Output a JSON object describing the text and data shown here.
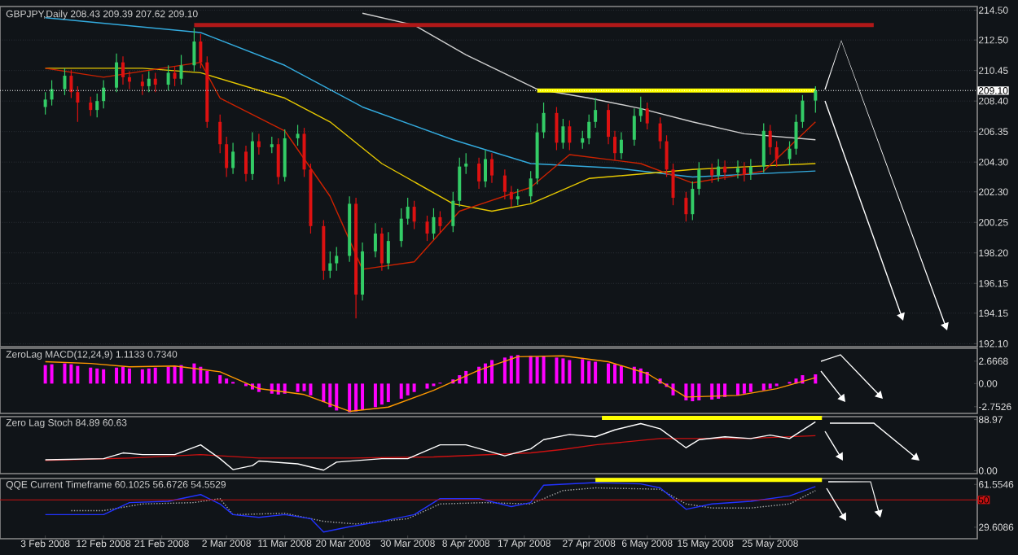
{
  "chart_data": [
    {
      "type": "candlestick",
      "title": "GBPJPY,Daily 208.43 209.39 207.62 209.10",
      "xlim": [
        "2008-01-27",
        "2008-06-26"
      ],
      "ylim": [
        191.9,
        214.75
      ],
      "tick_labels": "y",
      "grid": "y",
      "yticks": [
        {
          "value": 214.5,
          "label": "214.50"
        },
        {
          "value": 212.5,
          "label": "212.50"
        },
        210.45,
        {
          "value": 208.4,
          "label": "208.40"
        },
        206.35,
        {
          "value": 204.3,
          "label": "204.30"
        },
        {
          "value": 202.3,
          "label": "202.30"
        },
        200.25,
        {
          "value": 198.2,
          "label": "198.20"
        },
        196.15,
        194.15,
        {
          "value": 192.1,
          "label": "192.10"
        }
      ],
      "ref_lines": [
        {
          "axis": "y",
          "value": 209.1,
          "label": "209.10",
          "color": "#ffffff",
          "line_style": "dotted"
        }
      ],
      "x": [
        "2008-02-03",
        "2008-02-04",
        "2008-02-06",
        "2008-02-07",
        "2008-02-08",
        "2008-02-10",
        "2008-02-11",
        "2008-02-12",
        "2008-02-14",
        "2008-02-15",
        "2008-02-16",
        "2008-02-18",
        "2008-02-19",
        "2008-02-20",
        "2008-02-22",
        "2008-02-23",
        "2008-02-24",
        "2008-02-26",
        "2008-02-27",
        "2008-02-28",
        "2008-03-01",
        "2008-03-02",
        "2008-03-03",
        "2008-03-05",
        "2008-03-06",
        "2008-03-07",
        "2008-03-09",
        "2008-03-10",
        "2008-03-11",
        "2008-03-13",
        "2008-03-14",
        "2008-03-15",
        "2008-03-17",
        "2008-03-18",
        "2008-03-19",
        "2008-03-21",
        "2008-03-22",
        "2008-03-23",
        "2008-03-25",
        "2008-03-26",
        "2008-03-27",
        "2008-03-29",
        "2008-03-30",
        "2008-03-31",
        "2008-04-02",
        "2008-04-03",
        "2008-04-04",
        "2008-04-06",
        "2008-04-07",
        "2008-04-08",
        "2008-04-10",
        "2008-04-11",
        "2008-04-12",
        "2008-04-14",
        "2008-04-15",
        "2008-04-16",
        "2008-04-18",
        "2008-04-19",
        "2008-04-20",
        "2008-04-22",
        "2008-04-23",
        "2008-04-24",
        "2008-04-26",
        "2008-04-27",
        "2008-04-28",
        "2008-04-30",
        "2008-05-01",
        "2008-05-02",
        "2008-05-04",
        "2008-05-05",
        "2008-05-06",
        "2008-05-08",
        "2008-05-09",
        "2008-05-10",
        "2008-05-12",
        "2008-05-13",
        "2008-05-14",
        "2008-05-16",
        "2008-05-17",
        "2008-05-18",
        "2008-05-20",
        "2008-05-21",
        "2008-05-22",
        "2008-05-24",
        "2008-05-25",
        "2008-05-26",
        "2008-05-28",
        "2008-05-29",
        "2008-05-30",
        "2008-06-01"
      ],
      "ohlc": [
        [
          208.0,
          209.0,
          207.5,
          208.5
        ],
        [
          208.5,
          209.8,
          208.1,
          209.2
        ],
        [
          209.2,
          210.6,
          208.8,
          210.1
        ],
        [
          210.1,
          210.5,
          208.6,
          209.0
        ],
        [
          209.0,
          209.4,
          207.0,
          208.3
        ],
        [
          208.3,
          208.7,
          207.4,
          207.8
        ],
        [
          207.8,
          208.9,
          207.3,
          208.4
        ],
        [
          208.4,
          209.8,
          207.9,
          209.3
        ],
        [
          209.3,
          211.6,
          209.0,
          211.0
        ],
        [
          211.0,
          211.4,
          209.5,
          210.0
        ],
        [
          210.0,
          210.4,
          209.2,
          209.7
        ],
        [
          209.7,
          210.2,
          208.8,
          209.4
        ],
        [
          209.4,
          210.4,
          209.0,
          209.9
        ],
        [
          209.9,
          210.3,
          209.0,
          209.5
        ],
        [
          209.5,
          210.8,
          209.1,
          210.3
        ],
        [
          210.3,
          210.7,
          209.4,
          209.9
        ],
        [
          209.9,
          211.5,
          209.5,
          210.8
        ],
        [
          210.8,
          213.3,
          210.4,
          212.4
        ],
        [
          212.4,
          212.9,
          210.6,
          211.0
        ],
        [
          211.0,
          211.4,
          206.6,
          207.0
        ],
        [
          207.0,
          207.5,
          204.9,
          205.5
        ],
        [
          205.5,
          206.0,
          203.3,
          203.9
        ],
        [
          203.9,
          205.6,
          203.5,
          205.0
        ],
        [
          205.0,
          205.4,
          203.0,
          203.5
        ],
        [
          203.5,
          206.3,
          203.1,
          205.7
        ],
        [
          205.7,
          206.2,
          204.8,
          205.3
        ],
        [
          205.3,
          206.0,
          204.9,
          205.5
        ],
        [
          205.5,
          205.9,
          202.8,
          203.3
        ],
        [
          203.3,
          206.5,
          203.0,
          205.9
        ],
        [
          205.9,
          206.8,
          205.4,
          206.2
        ],
        [
          206.2,
          206.6,
          203.3,
          203.8
        ],
        [
          203.8,
          204.2,
          199.5,
          200.0
        ],
        [
          200.0,
          200.4,
          196.4,
          197.0
        ],
        [
          197.0,
          198.3,
          196.5,
          197.5
        ],
        [
          197.5,
          198.6,
          197.0,
          198.0
        ],
        [
          198.0,
          202.0,
          197.6,
          201.5
        ],
        [
          201.5,
          201.9,
          193.8,
          195.4
        ],
        [
          195.4,
          198.9,
          195.0,
          198.3
        ],
        [
          198.3,
          200.2,
          197.9,
          199.5
        ],
        [
          199.5,
          199.9,
          197.0,
          197.5
        ],
        [
          197.5,
          199.6,
          197.1,
          199.0
        ],
        [
          199.0,
          201.2,
          198.6,
          200.5
        ],
        [
          200.5,
          201.9,
          200.1,
          201.3
        ],
        [
          201.3,
          201.7,
          199.8,
          200.3
        ],
        [
          200.3,
          200.7,
          199.0,
          199.5
        ],
        [
          199.5,
          201.2,
          199.1,
          200.6
        ],
        [
          200.6,
          201.0,
          199.5,
          200.0
        ],
        [
          200.0,
          202.3,
          199.6,
          201.7
        ],
        [
          201.7,
          204.6,
          201.3,
          204.0
        ],
        [
          204.0,
          204.9,
          203.5,
          204.2
        ],
        [
          204.2,
          204.6,
          202.5,
          203.0
        ],
        [
          203.0,
          205.1,
          202.6,
          204.5
        ],
        [
          204.5,
          204.9,
          202.9,
          203.4
        ],
        [
          203.4,
          203.8,
          201.8,
          202.3
        ],
        [
          202.3,
          202.7,
          201.3,
          201.8
        ],
        [
          201.8,
          202.5,
          201.4,
          202.0
        ],
        [
          202.0,
          203.7,
          201.6,
          203.2
        ],
        [
          203.2,
          206.9,
          202.8,
          206.3
        ],
        [
          206.3,
          208.3,
          205.9,
          207.6
        ],
        [
          207.6,
          208.0,
          205.1,
          205.6
        ],
        [
          205.6,
          207.2,
          205.2,
          206.7
        ],
        [
          206.7,
          207.1,
          205.1,
          205.6
        ],
        [
          205.6,
          206.4,
          205.2,
          205.9
        ],
        [
          205.9,
          207.5,
          205.5,
          207.0
        ],
        [
          207.0,
          208.6,
          206.6,
          207.8
        ],
        [
          207.8,
          208.2,
          205.5,
          206.0
        ],
        [
          206.0,
          206.4,
          204.4,
          204.9
        ],
        [
          204.9,
          206.3,
          204.5,
          205.8
        ],
        [
          205.8,
          207.9,
          205.4,
          207.4
        ],
        [
          207.4,
          208.7,
          207.0,
          207.9
        ],
        [
          207.9,
          208.3,
          206.5,
          206.9
        ],
        [
          206.9,
          207.3,
          205.2,
          205.7
        ],
        [
          205.7,
          206.1,
          203.3,
          203.8
        ],
        [
          203.8,
          204.2,
          201.4,
          201.9
        ],
        [
          201.9,
          202.3,
          200.3,
          200.8
        ],
        [
          200.8,
          203.0,
          200.4,
          202.5
        ],
        [
          202.5,
          204.3,
          202.1,
          203.8
        ],
        [
          203.8,
          204.2,
          202.9,
          203.4
        ],
        [
          203.4,
          204.5,
          203.0,
          204.0
        ],
        [
          204.0,
          204.4,
          203.1,
          203.6
        ],
        [
          203.6,
          204.4,
          203.2,
          203.9
        ],
        [
          203.9,
          204.3,
          203.0,
          203.5
        ],
        [
          203.5,
          204.5,
          203.1,
          204.0
        ],
        [
          204.0,
          206.9,
          203.6,
          206.4
        ],
        [
          206.4,
          206.8,
          204.8,
          205.3
        ],
        [
          205.3,
          205.7,
          204.0,
          204.5
        ],
        [
          204.5,
          205.7,
          204.1,
          205.2
        ],
        [
          205.2,
          207.5,
          204.8,
          207.0
        ],
        [
          207.0,
          208.8,
          206.6,
          208.43
        ],
        [
          208.43,
          209.39,
          207.62,
          209.1
        ]
      ],
      "colors": [
        "#33cc66",
        "#33cc66",
        "#33cc66",
        "#dd1111",
        "#dd1111",
        "#dd1111",
        "#33cc66",
        "#33cc66",
        "#33cc66",
        "#dd1111",
        "#dd1111",
        "#dd1111",
        "#33cc66",
        "#dd1111",
        "#33cc66",
        "#dd1111",
        "#33cc66",
        "#33cc66",
        "#dd1111",
        "#dd1111",
        "#dd1111",
        "#dd1111",
        "#33cc66",
        "#dd1111",
        "#33cc66",
        "#dd1111",
        "#33cc66",
        "#dd1111",
        "#33cc66",
        "#33cc66",
        "#dd1111",
        "#dd1111",
        "#dd1111",
        "#33cc66",
        "#33cc66",
        "#33cc66",
        "#dd1111",
        "#33cc66",
        "#33cc66",
        "#dd1111",
        "#33cc66",
        "#33cc66",
        "#33cc66",
        "#dd1111",
        "#dd1111",
        "#33cc66",
        "#dd1111",
        "#33cc66",
        "#33cc66",
        "#33cc66",
        "#dd1111",
        "#33cc66",
        "#dd1111",
        "#dd1111",
        "#dd1111",
        "#33cc66",
        "#33cc66",
        "#33cc66",
        "#33cc66",
        "#dd1111",
        "#33cc66",
        "#dd1111",
        "#33cc66",
        "#33cc66",
        "#33cc66",
        "#dd1111",
        "#dd1111",
        "#33cc66",
        "#33cc66",
        "#33cc66",
        "#dd1111",
        "#dd1111",
        "#dd1111",
        "#dd1111",
        "#dd1111",
        "#33cc66",
        "#33cc66",
        "#dd1111",
        "#33cc66",
        "#dd1111",
        "#33cc66",
        "#dd1111",
        "#33cc66",
        "#33cc66",
        "#dd1111",
        "#dd1111",
        "#33cc66",
        "#33cc66",
        "#33cc66",
        "#33cc66"
      ],
      "series": [
        {
          "type": "line",
          "color": "#33aadd",
          "x": [
            "2008-02-03",
            "2008-02-27",
            "2008-03-11",
            "2008-03-23",
            "2008-04-06",
            "2008-04-18",
            "2008-05-01",
            "2008-05-13",
            "2008-06-01"
          ],
          "values": [
            214.0,
            213.0,
            210.8,
            208.0,
            205.8,
            204.2,
            203.9,
            203.3,
            203.7
          ]
        },
        {
          "type": "line",
          "color": "#e6c800",
          "x": [
            "2008-02-03",
            "2008-02-18",
            "2008-02-27",
            "2008-03-11",
            "2008-03-18",
            "2008-03-26",
            "2008-04-06",
            "2008-04-12",
            "2008-04-18",
            "2008-04-27",
            "2008-05-13",
            "2008-05-22",
            "2008-06-01"
          ],
          "values": [
            210.6,
            210.6,
            210.3,
            208.6,
            207.0,
            204.2,
            201.5,
            201.0,
            201.5,
            203.2,
            203.8,
            204.0,
            204.2
          ]
        },
        {
          "type": "line",
          "color": "#cc2200",
          "x": [
            "2008-02-03",
            "2008-02-12",
            "2008-02-27",
            "2008-03-01",
            "2008-03-11",
            "2008-03-18",
            "2008-03-23",
            "2008-03-31",
            "2008-04-07",
            "2008-04-18",
            "2008-04-24",
            "2008-05-05",
            "2008-05-13",
            "2008-05-24",
            "2008-06-01"
          ],
          "values": [
            210.6,
            210.0,
            211.0,
            208.6,
            206.4,
            202.0,
            197.1,
            197.6,
            201.0,
            202.6,
            204.8,
            204.2,
            202.9,
            203.7,
            207.0
          ]
        },
        {
          "type": "line",
          "color": "#d0d0d0",
          "x": [
            "2008-03-23",
            "2008-03-31",
            "2008-04-08",
            "2008-04-19",
            "2008-04-27",
            "2008-05-05",
            "2008-05-13",
            "2008-05-21",
            "2008-06-01"
          ],
          "values": [
            214.3,
            213.5,
            211.5,
            209.2,
            208.6,
            207.9,
            207.0,
            206.2,
            205.8
          ]
        },
        {
          "type": "line",
          "color": "#b01818",
          "x": [
            "2008-02-26",
            "2008-06-10"
          ],
          "values": [
            213.5,
            213.5
          ]
        },
        {
          "type": "line",
          "color": "#ffff00",
          "x": [
            "2008-04-19",
            "2008-06-01"
          ],
          "values": [
            209.1,
            209.1
          ]
        }
      ]
    },
    {
      "type": "bar",
      "title": "ZeroLag MACD(12,24,9) 1.1133 0.7340",
      "xlim": [
        "2008-01-27",
        "2008-06-26"
      ],
      "ylim": [
        -3.55,
        4.2
      ],
      "tick_labels": "y",
      "yticks": [
        2.6668,
        {
          "value": 0,
          "label": "0.00"
        },
        -2.7526
      ],
      "series": [
        {
          "type": "bar",
          "color": "#ff00ff",
          "x": [
            "2008-02-03",
            "2008-02-04",
            "2008-02-06",
            "2008-02-07",
            "2008-02-08",
            "2008-02-10",
            "2008-02-11",
            "2008-02-12",
            "2008-02-14",
            "2008-02-15",
            "2008-02-16",
            "2008-02-18",
            "2008-02-19",
            "2008-02-20",
            "2008-02-22",
            "2008-02-23",
            "2008-02-24",
            "2008-02-26",
            "2008-02-27",
            "2008-02-28",
            "2008-03-01",
            "2008-03-02",
            "2008-03-03",
            "2008-03-05",
            "2008-03-06",
            "2008-03-07",
            "2008-03-09",
            "2008-03-10",
            "2008-03-11",
            "2008-03-13",
            "2008-03-14",
            "2008-03-15",
            "2008-03-17",
            "2008-03-18",
            "2008-03-19",
            "2008-03-21",
            "2008-03-22",
            "2008-03-23",
            "2008-03-25",
            "2008-03-26",
            "2008-03-27",
            "2008-03-29",
            "2008-03-30",
            "2008-03-31",
            "2008-04-02",
            "2008-04-03",
            "2008-04-04",
            "2008-04-06",
            "2008-04-07",
            "2008-04-08",
            "2008-04-10",
            "2008-04-11",
            "2008-04-12",
            "2008-04-14",
            "2008-04-15",
            "2008-04-16",
            "2008-04-18",
            "2008-04-19",
            "2008-04-20",
            "2008-04-22",
            "2008-04-23",
            "2008-04-24",
            "2008-04-26",
            "2008-04-27",
            "2008-04-28",
            "2008-04-30",
            "2008-05-01",
            "2008-05-02",
            "2008-05-04",
            "2008-05-05",
            "2008-05-06",
            "2008-05-08",
            "2008-05-09",
            "2008-05-10",
            "2008-05-12",
            "2008-05-13",
            "2008-05-14",
            "2008-05-16",
            "2008-05-17",
            "2008-05-18",
            "2008-05-20",
            "2008-05-21",
            "2008-05-22",
            "2008-05-24",
            "2008-05-25",
            "2008-05-26",
            "2008-05-28",
            "2008-05-29",
            "2008-05-30",
            "2008-06-01"
          ],
          "values": [
            2.2,
            2.3,
            2.4,
            2.3,
            2.1,
            1.9,
            1.8,
            1.7,
            1.9,
            2.0,
            1.8,
            1.7,
            1.8,
            1.9,
            2.0,
            2.1,
            2.2,
            2.4,
            2.0,
            1.5,
            1.0,
            0.6,
            0.2,
            -0.3,
            -0.7,
            -1.0,
            -1.2,
            -1.3,
            -1.2,
            -1.0,
            -0.9,
            -1.4,
            -2.2,
            -2.8,
            -3.2,
            -3.4,
            -3.3,
            -3.1,
            -2.8,
            -2.5,
            -2.2,
            -1.8,
            -1.4,
            -1.0,
            -0.6,
            -0.3,
            0.1,
            0.5,
            1.0,
            1.5,
            2.0,
            2.4,
            2.8,
            3.1,
            3.3,
            3.4,
            3.3,
            3.2,
            3.3,
            3.1,
            3.0,
            2.8,
            2.9,
            2.7,
            2.6,
            2.4,
            2.3,
            2.1,
            2.0,
            1.8,
            1.4,
            0.6,
            -0.4,
            -1.4,
            -2.0,
            -2.1,
            -2.0,
            -1.9,
            -1.8,
            -1.6,
            -1.4,
            -1.2,
            -1.0,
            -0.8,
            -0.6,
            -0.3,
            0.2,
            0.6,
            1.0,
            1.1
          ]
        },
        {
          "type": "line",
          "color": "#ff9900",
          "x": [
            "2008-02-03",
            "2008-02-10",
            "2008-02-16",
            "2008-02-23",
            "2008-03-01",
            "2008-03-07",
            "2008-03-14",
            "2008-03-21",
            "2008-03-27",
            "2008-04-03",
            "2008-04-10",
            "2008-04-16",
            "2008-04-23",
            "2008-04-30",
            "2008-05-06",
            "2008-05-12",
            "2008-05-20",
            "2008-05-26",
            "2008-06-01"
          ],
          "values": [
            2.6,
            2.4,
            2.0,
            2.1,
            1.4,
            -0.6,
            -1.3,
            -3.3,
            -2.8,
            -0.8,
            1.6,
            3.2,
            3.3,
            2.6,
            1.2,
            -1.6,
            -1.4,
            -0.6,
            0.7
          ]
        }
      ]
    },
    {
      "type": "line",
      "title": "Zero Lag Stoch 84.89 60.63",
      "xlim": [
        "2008-01-27",
        "2008-06-26"
      ],
      "ylim": [
        -5,
        94
      ],
      "tick_labels": "y",
      "yticks": [
        88.97,
        {
          "value": 0,
          "label": "0.00"
        }
      ],
      "series": [
        {
          "type": "line",
          "color": "#cc1111",
          "x": [
            "2008-02-03",
            "2008-02-16",
            "2008-02-27",
            "2008-03-07",
            "2008-03-21",
            "2008-04-03",
            "2008-04-18",
            "2008-04-23",
            "2008-04-28",
            "2008-05-08",
            "2008-05-21",
            "2008-06-01"
          ],
          "values": [
            18,
            22,
            28,
            22,
            22,
            24,
            31,
            37,
            45,
            56,
            56,
            61
          ]
        },
        {
          "type": "line",
          "color": "#ffffff",
          "x": [
            "2008-02-03",
            "2008-02-12",
            "2008-02-15",
            "2008-02-18",
            "2008-02-23",
            "2008-02-27",
            "2008-03-01",
            "2008-03-03",
            "2008-03-06",
            "2008-03-07",
            "2008-03-13",
            "2008-03-17",
            "2008-03-19",
            "2008-03-26",
            "2008-03-30",
            "2008-04-04",
            "2008-04-08",
            "2008-04-14",
            "2008-04-18",
            "2008-04-20",
            "2008-04-24",
            "2008-04-28",
            "2008-05-01",
            "2008-05-05",
            "2008-05-08",
            "2008-05-12",
            "2008-05-14",
            "2008-05-18",
            "2008-05-22",
            "2008-05-25",
            "2008-05-28",
            "2008-06-01"
          ],
          "values": [
            19,
            21,
            31,
            28,
            28,
            45,
            21,
            2,
            9,
            17,
            12,
            1,
            15,
            21,
            21,
            45,
            45,
            26,
            38,
            54,
            63,
            59,
            71,
            82,
            73,
            40,
            54,
            59,
            56,
            62,
            56,
            85
          ]
        },
        {
          "type": "line",
          "color": "#ffff00",
          "x": [
            "2008-04-29",
            "2008-06-02"
          ],
          "values": [
            92,
            92
          ]
        }
      ]
    },
    {
      "type": "line",
      "title": "QQE Current Timeframe 60.1025 56.6726 54.5529",
      "xlim": [
        "2008-01-27",
        "2008-06-26"
      ],
      "ylim": [
        21,
        66
      ],
      "yticks": [
        61.5546,
        29.6086
      ],
      "xticks": [
        {
          "value": "2008-02-03",
          "label": "3 Feb 2008"
        },
        {
          "value": "2008-02-12",
          "label": "12 Feb 2008"
        },
        {
          "value": "2008-02-21",
          "label": "21 Feb 2008"
        },
        {
          "value": "2008-03-02",
          "label": "2 Mar 2008"
        },
        {
          "value": "2008-03-11",
          "label": "11 Mar 2008"
        },
        {
          "value": "2008-03-20",
          "label": "20 Mar 2008"
        },
        {
          "value": "2008-03-30",
          "label": "30 Mar 2008"
        },
        {
          "value": "2008-04-08",
          "label": "8 Apr 2008"
        },
        {
          "value": "2008-04-17",
          "label": "17 Apr 2008"
        },
        {
          "value": "2008-04-27",
          "label": "27 Apr 2008"
        },
        {
          "value": "2008-05-06",
          "label": "6 May 2008"
        },
        {
          "value": "2008-05-15",
          "label": "15 May 2008"
        },
        {
          "value": "2008-05-25",
          "label": "25 May 2008"
        }
      ],
      "ref_lines": [
        {
          "axis": "y",
          "value": 50,
          "label": "50",
          "color": "#cc1111"
        }
      ],
      "series": [
        {
          "type": "line",
          "color": "#aaaaaa",
          "line_style": "dotted",
          "x": [
            "2008-02-07",
            "2008-02-12",
            "2008-02-18",
            "2008-02-26",
            "2008-03-01",
            "2008-03-03",
            "2008-03-11",
            "2008-03-17",
            "2008-03-22",
            "2008-03-30",
            "2008-04-04",
            "2008-04-11",
            "2008-04-18",
            "2008-04-23",
            "2008-04-28",
            "2008-05-08",
            "2008-05-12",
            "2008-05-16",
            "2008-05-22",
            "2008-05-28",
            "2008-06-01"
          ],
          "values": [
            42,
            42,
            47,
            48,
            51,
            39,
            40,
            34,
            32,
            36,
            47,
            48,
            47,
            57,
            59,
            58,
            47,
            44,
            44,
            47,
            57
          ]
        },
        {
          "type": "line",
          "color": "#2233ff",
          "x": [
            "2008-02-03",
            "2008-02-12",
            "2008-02-16",
            "2008-02-22",
            "2008-02-27",
            "2008-03-01",
            "2008-03-03",
            "2008-03-07",
            "2008-03-11",
            "2008-03-15",
            "2008-03-17",
            "2008-03-21",
            "2008-03-26",
            "2008-03-31",
            "2008-04-04",
            "2008-04-10",
            "2008-04-15",
            "2008-04-18",
            "2008-04-20",
            "2008-04-28",
            "2008-05-05",
            "2008-05-08",
            "2008-05-12",
            "2008-05-16",
            "2008-05-22",
            "2008-05-28",
            "2008-06-01"
          ],
          "values": [
            39,
            39,
            48,
            49,
            54,
            47,
            39,
            37,
            39,
            36,
            26,
            30,
            34,
            39,
            51,
            51,
            45,
            48,
            61,
            63,
            62,
            59,
            43,
            47,
            49,
            53,
            60
          ]
        },
        {
          "type": "line",
          "color": "#ffff00",
          "x": [
            "2008-04-28",
            "2008-06-02"
          ],
          "values": [
            65,
            65
          ]
        }
      ]
    }
  ]
}
